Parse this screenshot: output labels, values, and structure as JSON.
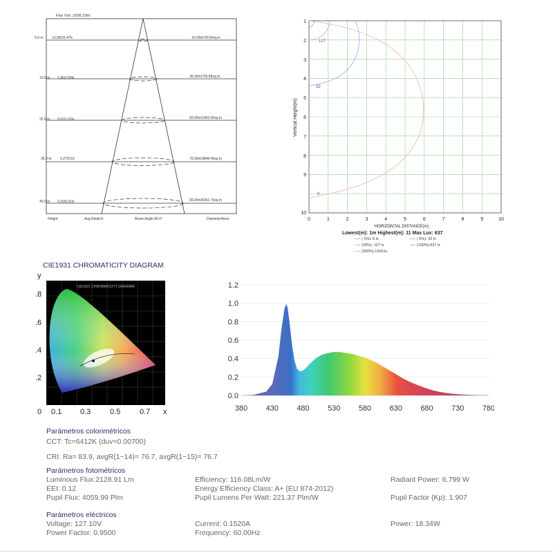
{
  "beam": {
    "flux_out": "Flux Out: 1028.13lm",
    "rows": [
      {
        "height": "5.0 m",
        "lux": "13.89/25.47lx",
        "area": "10.00m/78.54sq.m"
      },
      {
        "height": "15.0 m",
        "lux": "1.45/2.83lx",
        "area": "30.00m/706.86sq.m"
      },
      {
        "height": "25.0 m",
        "lux": "0.52/1.02lx",
        "area": "50.00m/1963.50sq.m"
      },
      {
        "height": "35.0 m",
        "lux": "0.27/0.52",
        "area": "70.00m/3848.45sq.m"
      },
      {
        "height": "45.0 m",
        "lux": "0.16/0.31lx",
        "area": "90.00m/6361.73sq.m"
      }
    ],
    "footer": {
      "height": "Height",
      "avg": "Avg./Nadir.E",
      "beam_angle": "Beam Angle:90.0°",
      "diameter": "Diameter/Area"
    }
  },
  "iso": {
    "ylabel": "Vertical Height(m)",
    "xlabel": "HORIZONTAL DISTANCE(m)",
    "y_ticks": [
      "1",
      "2",
      "3",
      "4",
      "5",
      "6",
      "7",
      "8",
      "9",
      "10"
    ],
    "x_ticks": [
      "0",
      "1",
      "2",
      "3",
      "4",
      "5",
      "6",
      "7",
      "8",
      "9",
      "10"
    ],
    "stats": "Lowest(m):  1m     Highest(m):  11     Max Lux: 637",
    "curve_labels": [
      "127",
      "32",
      "6"
    ],
    "legend": [
      {
        "text": "( 1%):    6 lx",
        "color": "#e98a8a"
      },
      {
        "text": "( 5%): 32 lx",
        "color": "#8a8ae9"
      },
      {
        "text": "(20%): 127 lx",
        "color": "#b9a0d0"
      },
      {
        "text": "(100%):637 lx",
        "color": "#8aa8c0"
      },
      {
        "text": "(300%):19101x",
        "color": "#e9a0a0"
      }
    ]
  },
  "cie": {
    "title": "CIE1931 CHROMATICITY DIAGRAM",
    "inner_title": "CIE1931 CHROMATICITY DIAGRAM",
    "y_axis_label": "y",
    "x_axis_label": "x",
    "y_ticks": [
      ".8",
      ".6",
      ".4",
      ".2"
    ],
    "x_ticks": [
      "0",
      "0.1",
      "0.3",
      "0.5",
      "0.7"
    ]
  },
  "chart_data": {
    "type": "area",
    "title": "",
    "xlabel": "",
    "ylabel": "",
    "xlim": [
      380,
      780
    ],
    "ylim": [
      0,
      1.2
    ],
    "x_ticks": [
      380,
      430,
      480,
      530,
      580,
      630,
      680,
      730,
      780
    ],
    "y_ticks": [
      "0.0",
      "0.2",
      "0.4",
      "0.6",
      "0.8",
      "1.0",
      "1.2"
    ],
    "x_tick_labels": [
      "380",
      "430",
      "480",
      "530",
      "580",
      "630",
      "680",
      "730",
      "780"
    ],
    "x": [
      380,
      400,
      420,
      430,
      440,
      445,
      450,
      453,
      455,
      458,
      462,
      466,
      470,
      475,
      480,
      485,
      490,
      500,
      510,
      520,
      530,
      540,
      550,
      560,
      570,
      580,
      590,
      600,
      610,
      620,
      630,
      640,
      650,
      660,
      670,
      680,
      690,
      700,
      710,
      720,
      730,
      740,
      750,
      760,
      770,
      780
    ],
    "y": [
      0.0,
      0.005,
      0.04,
      0.12,
      0.42,
      0.72,
      0.95,
      0.99,
      0.95,
      0.8,
      0.55,
      0.38,
      0.29,
      0.26,
      0.27,
      0.3,
      0.34,
      0.4,
      0.44,
      0.46,
      0.47,
      0.47,
      0.46,
      0.45,
      0.43,
      0.41,
      0.38,
      0.35,
      0.31,
      0.27,
      0.23,
      0.19,
      0.155,
      0.125,
      0.1,
      0.075,
      0.055,
      0.04,
      0.028,
      0.019,
      0.013,
      0.008,
      0.005,
      0.003,
      0.002,
      0.001
    ]
  },
  "params": {
    "colorimetric_title": "Parámetros colorimétricos",
    "cct": "CCT: Tc=6412K (duv=0.00700)",
    "cri": "CRI: Ra= 83.9, avgR(1~14)= 76.7, avgR(1~15)= 76.7",
    "photometric_title": "Parámetros fotométricos",
    "luminous_flux": "Luminous Flux:2128.91 Lm",
    "eei": "EEI: 0.12",
    "pupil_flux": "Pupil Flux: 4059.99 Plm",
    "efficiency": "Efficiency: 116.08Lm/W",
    "energy_class": "Energy Efficiency Class: A+ (EU 874-2012)",
    "pupil_lpw": "Pupil Lumens Per Watt: 221.37 Plm/W",
    "radiant_power": "Radiant Power: 6.799 W",
    "pupil_factor": "Pupil Factor (Kp): 1.907",
    "electrical_title": "Parámetros eléctricos",
    "voltage": "Voltage: 127.10V",
    "power_factor": "Power Factor: 0.9500",
    "current": "Current: 0.1520A",
    "frequency": "Frequency: 60.00Hz",
    "power": "Power: 18.34W"
  }
}
